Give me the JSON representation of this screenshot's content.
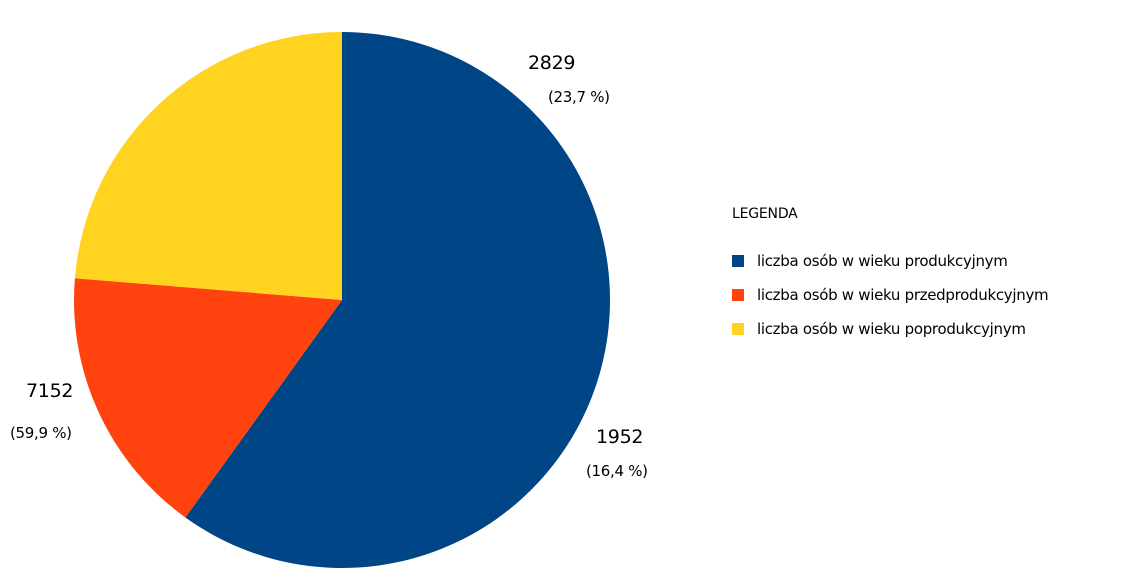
{
  "chart_data": {
    "type": "pie",
    "slices": [
      {
        "label": "liczba osób w wieku produkcyjnym",
        "value": 7152,
        "percent": "(59,9 %)",
        "color": "#004586"
      },
      {
        "label": "liczba osób w wieku przedprodukcyjnym",
        "value": 1952,
        "percent": "(16,4 %)",
        "color": "#ff420e"
      },
      {
        "label": "liczba osób w wieku poprodukcyjnym",
        "value": 2829,
        "percent": "(23,7 %)",
        "color": "#ffd320"
      }
    ],
    "start_angle_deg": 0,
    "legend": {
      "title": "LEGENDA",
      "position": "right"
    }
  }
}
